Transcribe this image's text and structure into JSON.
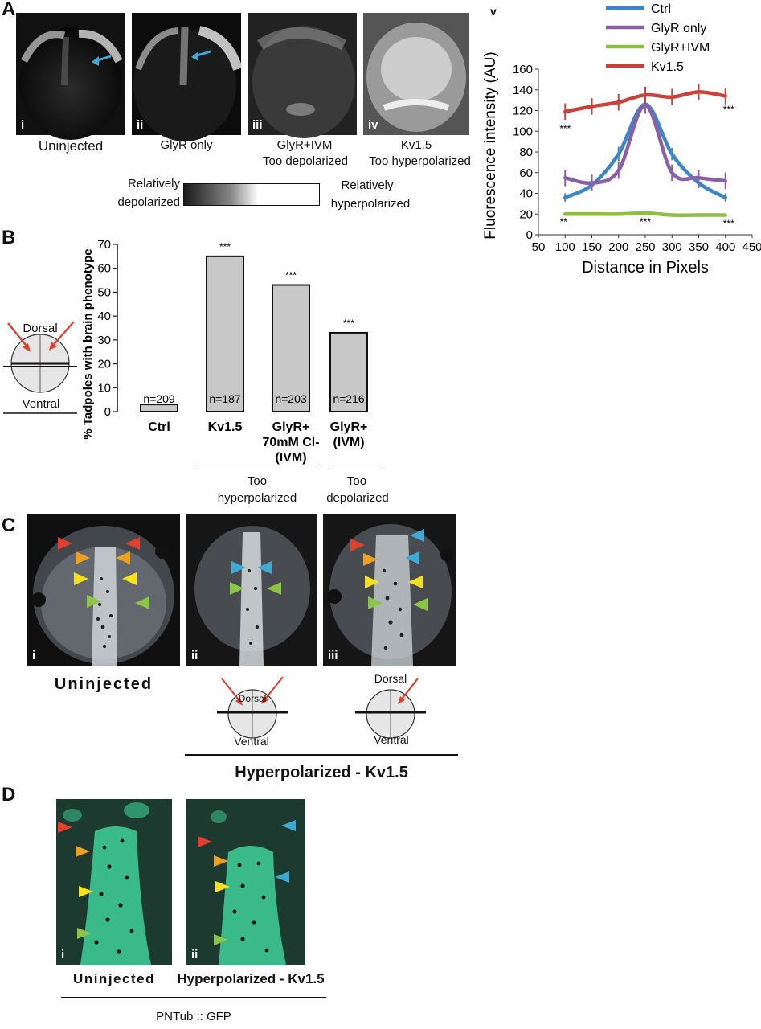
{
  "panel_letters": {
    "a": "A",
    "b": "B",
    "c": "C",
    "d": "D"
  },
  "panelA": {
    "images": [
      {
        "roman": "i",
        "caption": "Uninjected",
        "caption2": ""
      },
      {
        "roman": "ii",
        "caption": "GlyR only",
        "caption2": ""
      },
      {
        "roman": "iii",
        "caption": "GlyR+IVM",
        "caption2": "Too depolarized"
      },
      {
        "roman": "iv",
        "caption": "Kv1.5",
        "caption2": "Too hyperpolarized"
      }
    ],
    "scale_left_1": "Relatively",
    "scale_left_2": "depolarized",
    "scale_right_1": "Relatively",
    "scale_right_2": "hyperpolarized",
    "arrow_color": "#3fa9d4"
  },
  "panelA_chart": {
    "roman": "v",
    "significance": {
      "kv_left": "***",
      "kv_right": "***",
      "ivm_left": "**",
      "ivm_mid": "***",
      "ivm_right": "***"
    }
  },
  "panelB": {
    "dorsal": "Dorsal",
    "ventral": "Ventral",
    "group1_label": "Too",
    "group1_label2": "hyperpolarized",
    "group2_label": "Too",
    "group2_label2": "depolarized"
  },
  "panelC": {
    "images": [
      {
        "roman": "i"
      },
      {
        "roman": "ii"
      },
      {
        "roman": "iii"
      }
    ],
    "uninjected": "Uninjected",
    "dorsal": "Dorsal",
    "ventral": "Ventral",
    "hyper": "Hyperpolarized - Kv1.5"
  },
  "panelD": {
    "images": [
      {
        "roman": "i"
      },
      {
        "roman": "ii"
      }
    ],
    "uninjected": "Uninjected",
    "hyper": "Hyperpolarized - Kv1.5",
    "marker": "PNTub :: GFP"
  },
  "chart_data": [
    {
      "type": "line",
      "xlabel": "Distance in Pixels",
      "ylabel": "Fluorescence intensity (AU)",
      "xlim": [
        50,
        450
      ],
      "ylim": [
        0,
        160
      ],
      "xticks": [
        50,
        100,
        150,
        200,
        250,
        300,
        350,
        400,
        450
      ],
      "yticks": [
        0,
        20,
        40,
        60,
        80,
        100,
        120,
        140,
        160
      ],
      "legend": "top-right",
      "series": [
        {
          "name": "Ctrl",
          "color": "#3d86c6",
          "x": [
            100,
            150,
            200,
            250,
            300,
            350,
            400
          ],
          "y": [
            36,
            48,
            78,
            126,
            78,
            50,
            36
          ],
          "err": [
            4,
            6,
            7,
            6,
            6,
            5,
            4
          ]
        },
        {
          "name": "GlyR only",
          "color": "#8a5fa8",
          "x": [
            100,
            150,
            200,
            250,
            300,
            350,
            400
          ],
          "y": [
            55,
            50,
            62,
            125,
            60,
            55,
            52
          ],
          "err": [
            8,
            8,
            8,
            8,
            8,
            8,
            8
          ]
        },
        {
          "name": "GlyR+IVM",
          "color": "#8cbf3f",
          "x": [
            100,
            150,
            200,
            250,
            300,
            350,
            400
          ],
          "y": [
            20,
            20,
            20,
            21,
            19,
            19,
            19
          ],
          "err": [
            1,
            1,
            1,
            1,
            1,
            1,
            1
          ]
        },
        {
          "name": "Kv1.5",
          "color": "#c8423a",
          "x": [
            100,
            150,
            200,
            250,
            300,
            350,
            400
          ],
          "y": [
            119,
            124,
            128,
            135,
            133,
            138,
            134
          ],
          "err": [
            8,
            8,
            8,
            8,
            8,
            8,
            8
          ]
        }
      ]
    },
    {
      "type": "bar",
      "ylabel": "% Tadpoles with brain phenotype",
      "ylim": [
        0,
        70
      ],
      "yticks": [
        0,
        10,
        20,
        30,
        40,
        50,
        60,
        70
      ],
      "categories": [
        "Ctrl",
        "Kv1.5",
        "GlyR+\n70mM Cl-\n(IVM)",
        "GlyR+\n(IVM)"
      ],
      "values": [
        3,
        65,
        53,
        33
      ],
      "n_labels": [
        "n=209",
        "n=187",
        "n=203",
        "n=216"
      ],
      "significance": [
        "",
        "***",
        "***",
        "***"
      ]
    }
  ]
}
